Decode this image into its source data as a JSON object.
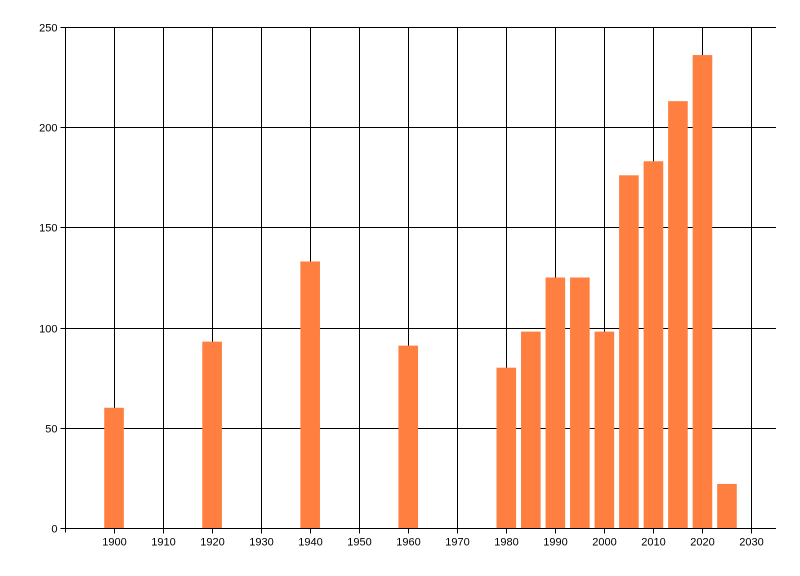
{
  "chart_data": {
    "type": "bar",
    "x": [
      1900,
      1920,
      1940,
      1960,
      1980,
      1985,
      1990,
      1995,
      2000,
      2005,
      2010,
      2015,
      2020,
      2025
    ],
    "values": [
      60,
      93,
      133,
      91,
      80,
      98,
      125,
      125,
      98,
      176,
      183,
      213,
      236,
      22
    ],
    "xlim": [
      1890,
      2035
    ],
    "ylim": [
      0,
      250
    ],
    "x_ticks": [
      1900,
      1910,
      1920,
      1930,
      1940,
      1950,
      1960,
      1970,
      1980,
      1990,
      2000,
      2010,
      2020,
      2030
    ],
    "y_ticks": [
      0,
      50,
      100,
      150,
      200,
      250
    ],
    "bar_width_years": 4,
    "bar_color": "#ff7f40",
    "grid": true,
    "title": "",
    "xlabel": "",
    "ylabel": ""
  }
}
